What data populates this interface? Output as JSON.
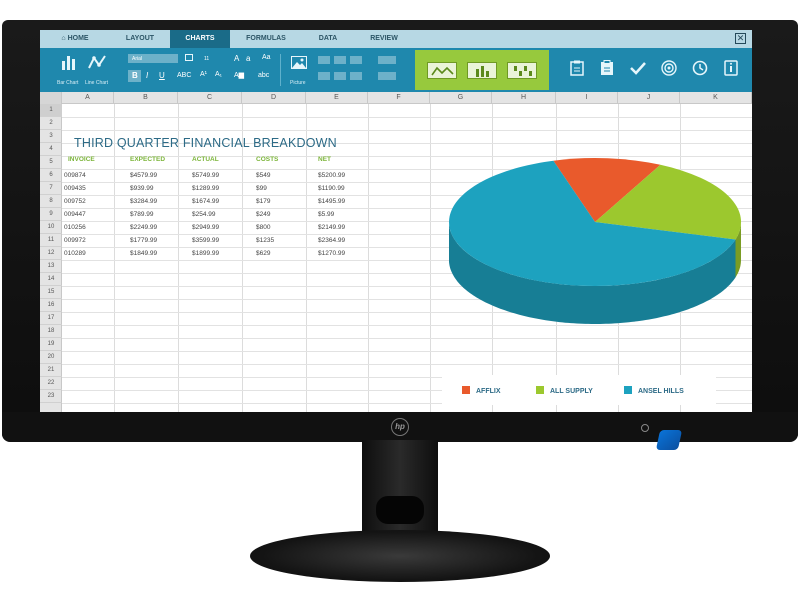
{
  "tabs": [
    {
      "label": "⌂ HOME",
      "active": false
    },
    {
      "label": "LAYOUT",
      "active": false
    },
    {
      "label": "CHARTS",
      "active": true
    },
    {
      "label": "FORMULAS",
      "active": false
    },
    {
      "label": "DATA",
      "active": false
    },
    {
      "label": "REVIEW",
      "active": false
    }
  ],
  "ribbon": {
    "bar_chart_label": "Bar Chart",
    "line_chart_label": "Line Chart",
    "font_name": "Arial",
    "font_size": "11",
    "bold": "B",
    "italic": "I",
    "underline": "U",
    "abc_label": "ABC",
    "aa_label": "Aa",
    "abc_lower": "abc",
    "picture_label": "Picture",
    "right_icons": [
      "clipboard-icon",
      "paste-icon",
      "checkmark-icon",
      "target-icon",
      "clock-icon",
      "info-icon"
    ]
  },
  "columns": [
    "A",
    "B",
    "C",
    "D",
    "E",
    "F",
    "G",
    "H",
    "I",
    "J",
    "K"
  ],
  "rows": [
    "1",
    "2",
    "3",
    "4",
    "5",
    "6",
    "7",
    "8",
    "9",
    "10",
    "11",
    "12",
    "13",
    "14",
    "15",
    "16",
    "17",
    "18",
    "19",
    "20",
    "21",
    "22",
    "23"
  ],
  "sheet": {
    "title": "THIRD QUARTER FINANCIAL BREAKDOWN",
    "headers": [
      "INVOICE",
      "EXPECTED",
      "ACTUAL",
      "COSTS",
      "NET"
    ],
    "data": [
      [
        "009874",
        "$4579.99",
        "$5749.99",
        "$549",
        "$5200.99"
      ],
      [
        "009435",
        "$939.99",
        "$1289.99",
        "$99",
        "$1190.99"
      ],
      [
        "009752",
        "$3284.99",
        "$1674.99",
        "$179",
        "$1495.99"
      ],
      [
        "009447",
        "$789.99",
        "$254.99",
        "$249",
        "$5.99"
      ],
      [
        "010256",
        "$2249.99",
        "$2949.99",
        "$800",
        "$2149.99"
      ],
      [
        "009972",
        "$1779.99",
        "$3599.99",
        "$1235",
        "$2364.99"
      ],
      [
        "010289",
        "$1849.99",
        "$1899.99",
        "$629",
        "$1270.99"
      ]
    ]
  },
  "chart_data": {
    "type": "pie",
    "labels": [
      "AFFLIX",
      "ALL SUPPLY",
      "ANSEL HILLS"
    ],
    "values": [
      12,
      22,
      66
    ],
    "colors": [
      "#e95a2c",
      "#9cc82e",
      "#1da2bf"
    ],
    "legend_position": "bottom"
  },
  "colors": {
    "tab_bar": "#b7d8e4",
    "active_tab": "#1a6b88",
    "ribbon": "#1f88ad",
    "chart_panel": "#97c93d",
    "title": "#2c6a86",
    "header_green": "#7cb53a"
  }
}
